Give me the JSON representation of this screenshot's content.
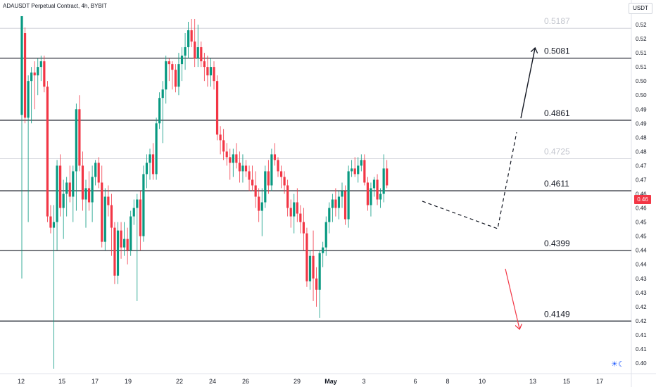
{
  "chart_data": {
    "type": "candlestick",
    "title": "ADAUSDT Perpetual Contract, 4h, BYBIT",
    "unit": "USDT",
    "last_price_label": "0.46",
    "ylim": [
      0.398,
      0.526
    ],
    "y_ticks": [
      {
        "value": 0.4,
        "label": "0.40"
      },
      {
        "value": 0.405,
        "label": "0.41"
      },
      {
        "value": 0.41,
        "label": "0.41"
      },
      {
        "value": 0.415,
        "label": "0.42"
      },
      {
        "value": 0.42,
        "label": "0.42"
      },
      {
        "value": 0.425,
        "label": "0.43"
      },
      {
        "value": 0.43,
        "label": "0.43"
      },
      {
        "value": 0.435,
        "label": "0.44"
      },
      {
        "value": 0.44,
        "label": "0.44"
      },
      {
        "value": 0.445,
        "label": "0.45"
      },
      {
        "value": 0.45,
        "label": "0.45"
      },
      {
        "value": 0.455,
        "label": "0.46"
      },
      {
        "value": 0.46,
        "label": "0.46"
      },
      {
        "value": 0.465,
        "label": "0.47"
      },
      {
        "value": 0.47,
        "label": "0.47"
      },
      {
        "value": 0.475,
        "label": "0.48"
      },
      {
        "value": 0.48,
        "label": "0.48"
      },
      {
        "value": 0.485,
        "label": "0.49"
      },
      {
        "value": 0.49,
        "label": "0.49"
      },
      {
        "value": 0.495,
        "label": "0.50"
      },
      {
        "value": 0.5,
        "label": "0.50"
      },
      {
        "value": 0.505,
        "label": "0.51"
      },
      {
        "value": 0.51,
        "label": "0.51"
      },
      {
        "value": 0.515,
        "label": "0.52"
      },
      {
        "value": 0.52,
        "label": "0.52"
      }
    ],
    "x_ticks": [
      "12",
      "15",
      "17",
      "19",
      "22",
      "24",
      "26",
      "29",
      "May",
      "3",
      "6",
      "8",
      "10",
      "13",
      "15",
      "17"
    ],
    "levels": [
      {
        "value": 0.5187,
        "label": "0.5187",
        "style": "faint"
      },
      {
        "value": 0.5081,
        "label": "0.5081",
        "style": "strong"
      },
      {
        "value": 0.4861,
        "label": "0.4861",
        "style": "strong"
      },
      {
        "value": 0.4725,
        "label": "0.4725",
        "style": "faint"
      },
      {
        "value": 0.4611,
        "label": "0.4611",
        "style": "strong"
      },
      {
        "value": 0.4399,
        "label": "0.4399",
        "style": "strong"
      },
      {
        "value": 0.4149,
        "label": "0.4149",
        "style": "strong"
      }
    ],
    "candles": [
      [
        0.488,
        0.523,
        0.43,
        0.523
      ],
      [
        0.517,
        0.519,
        0.485,
        0.487
      ],
      [
        0.487,
        0.502,
        0.45,
        0.5
      ],
      [
        0.5,
        0.505,
        0.485,
        0.503
      ],
      [
        0.503,
        0.507,
        0.49,
        0.502
      ],
      [
        0.502,
        0.508,
        0.495,
        0.505
      ],
      [
        0.505,
        0.509,
        0.5,
        0.507
      ],
      [
        0.507,
        0.509,
        0.496,
        0.498
      ],
      [
        0.498,
        0.5,
        0.45,
        0.452
      ],
      [
        0.452,
        0.456,
        0.446,
        0.448
      ],
      [
        0.448,
        0.456,
        0.398,
        0.45
      ],
      [
        0.45,
        0.472,
        0.44,
        0.47
      ],
      [
        0.47,
        0.474,
        0.452,
        0.455
      ],
      [
        0.455,
        0.465,
        0.444,
        0.46
      ],
      [
        0.46,
        0.466,
        0.452,
        0.464
      ],
      [
        0.464,
        0.47,
        0.457,
        0.459
      ],
      [
        0.459,
        0.47,
        0.45,
        0.468
      ],
      [
        0.468,
        0.492,
        0.454,
        0.49
      ],
      [
        0.49,
        0.495,
        0.468,
        0.47
      ],
      [
        0.47,
        0.475,
        0.454,
        0.458
      ],
      [
        0.458,
        0.465,
        0.448,
        0.462
      ],
      [
        0.462,
        0.468,
        0.454,
        0.457
      ],
      [
        0.457,
        0.47,
        0.45,
        0.466
      ],
      [
        0.466,
        0.472,
        0.463,
        0.471
      ],
      [
        0.471,
        0.473,
        0.462,
        0.464
      ],
      [
        0.464,
        0.47,
        0.441,
        0.443
      ],
      [
        0.443,
        0.462,
        0.44,
        0.459
      ],
      [
        0.459,
        0.463,
        0.452,
        0.456
      ],
      [
        0.456,
        0.46,
        0.438,
        0.448
      ],
      [
        0.448,
        0.45,
        0.428,
        0.431
      ],
      [
        0.431,
        0.45,
        0.428,
        0.447
      ],
      [
        0.447,
        0.45,
        0.437,
        0.441
      ],
      [
        0.441,
        0.45,
        0.438,
        0.444
      ],
      [
        0.444,
        0.448,
        0.435,
        0.44
      ],
      [
        0.44,
        0.454,
        0.438,
        0.452
      ],
      [
        0.452,
        0.458,
        0.449,
        0.455
      ],
      [
        0.455,
        0.46,
        0.422,
        0.458
      ],
      [
        0.458,
        0.461,
        0.44,
        0.445
      ],
      [
        0.445,
        0.47,
        0.443,
        0.467
      ],
      [
        0.467,
        0.474,
        0.462,
        0.471
      ],
      [
        0.471,
        0.476,
        0.465,
        0.474
      ],
      [
        0.474,
        0.478,
        0.465,
        0.467
      ],
      [
        0.467,
        0.487,
        0.465,
        0.485
      ],
      [
        0.485,
        0.496,
        0.483,
        0.494
      ],
      [
        0.494,
        0.5,
        0.478,
        0.497
      ],
      [
        0.497,
        0.509,
        0.492,
        0.507
      ],
      [
        0.507,
        0.508,
        0.5,
        0.506
      ],
      [
        0.506,
        0.507,
        0.497,
        0.504
      ],
      [
        0.504,
        0.506,
        0.496,
        0.498
      ],
      [
        0.498,
        0.51,
        0.495,
        0.506
      ],
      [
        0.506,
        0.512,
        0.5,
        0.509
      ],
      [
        0.509,
        0.517,
        0.504,
        0.512
      ],
      [
        0.512,
        0.521,
        0.508,
        0.518
      ],
      [
        0.518,
        0.522,
        0.512,
        0.514
      ],
      [
        0.514,
        0.522,
        0.505,
        0.508
      ],
      [
        0.508,
        0.52,
        0.505,
        0.512
      ],
      [
        0.512,
        0.514,
        0.505,
        0.507
      ],
      [
        0.507,
        0.51,
        0.5,
        0.505
      ],
      [
        0.505,
        0.509,
        0.498,
        0.502
      ],
      [
        0.502,
        0.508,
        0.498,
        0.505
      ],
      [
        0.505,
        0.507,
        0.497,
        0.5
      ],
      [
        0.5,
        0.502,
        0.479,
        0.481
      ],
      [
        0.481,
        0.484,
        0.474,
        0.479
      ],
      [
        0.479,
        0.483,
        0.472,
        0.475
      ],
      [
        0.475,
        0.478,
        0.47,
        0.473
      ],
      [
        0.473,
        0.476,
        0.465,
        0.471
      ],
      [
        0.471,
        0.476,
        0.466,
        0.474
      ],
      [
        0.474,
        0.478,
        0.469,
        0.471
      ],
      [
        0.471,
        0.475,
        0.464,
        0.468
      ],
      [
        0.468,
        0.474,
        0.464,
        0.47
      ],
      [
        0.47,
        0.472,
        0.466,
        0.468
      ],
      [
        0.468,
        0.47,
        0.461,
        0.465
      ],
      [
        0.465,
        0.47,
        0.461,
        0.463
      ],
      [
        0.463,
        0.468,
        0.455,
        0.459
      ],
      [
        0.459,
        0.462,
        0.45,
        0.454
      ],
      [
        0.454,
        0.462,
        0.445,
        0.457
      ],
      [
        0.457,
        0.47,
        0.455,
        0.468
      ],
      [
        0.468,
        0.472,
        0.46,
        0.463
      ],
      [
        0.463,
        0.476,
        0.461,
        0.474
      ],
      [
        0.474,
        0.478,
        0.47,
        0.472
      ],
      [
        0.472,
        0.473,
        0.466,
        0.468
      ],
      [
        0.468,
        0.47,
        0.462,
        0.466
      ],
      [
        0.466,
        0.468,
        0.46,
        0.463
      ],
      [
        0.463,
        0.465,
        0.452,
        0.455
      ],
      [
        0.455,
        0.458,
        0.448,
        0.452
      ],
      [
        0.452,
        0.46,
        0.446,
        0.457
      ],
      [
        0.457,
        0.462,
        0.45,
        0.453
      ],
      [
        0.453,
        0.456,
        0.446,
        0.45
      ],
      [
        0.45,
        0.455,
        0.44,
        0.446
      ],
      [
        0.446,
        0.448,
        0.427,
        0.429
      ],
      [
        0.429,
        0.44,
        0.426,
        0.438
      ],
      [
        0.438,
        0.447,
        0.422,
        0.43
      ],
      [
        0.43,
        0.434,
        0.42,
        0.426
      ],
      [
        0.426,
        0.44,
        0.416,
        0.439
      ],
      [
        0.439,
        0.443,
        0.434,
        0.441
      ],
      [
        0.441,
        0.452,
        0.438,
        0.45
      ],
      [
        0.45,
        0.457,
        0.446,
        0.455
      ],
      [
        0.455,
        0.46,
        0.45,
        0.458
      ],
      [
        0.458,
        0.462,
        0.452,
        0.455
      ],
      [
        0.455,
        0.461,
        0.451,
        0.459
      ],
      [
        0.459,
        0.464,
        0.455,
        0.461
      ],
      [
        0.461,
        0.463,
        0.449,
        0.451
      ],
      [
        0.451,
        0.47,
        0.448,
        0.468
      ],
      [
        0.468,
        0.472,
        0.466,
        0.469
      ],
      [
        0.469,
        0.473,
        0.466,
        0.467
      ],
      [
        0.467,
        0.473,
        0.464,
        0.47
      ],
      [
        0.47,
        0.474,
        0.468,
        0.472
      ],
      [
        0.472,
        0.474,
        0.463,
        0.464
      ],
      [
        0.464,
        0.466,
        0.454,
        0.456
      ],
      [
        0.456,
        0.464,
        0.452,
        0.462
      ],
      [
        0.462,
        0.466,
        0.459,
        0.465
      ],
      [
        0.465,
        0.467,
        0.456,
        0.458
      ],
      [
        0.458,
        0.462,
        0.455,
        0.46
      ],
      [
        0.46,
        0.474,
        0.457,
        0.469
      ],
      [
        0.469,
        0.472,
        0.462,
        0.463
      ]
    ]
  }
}
